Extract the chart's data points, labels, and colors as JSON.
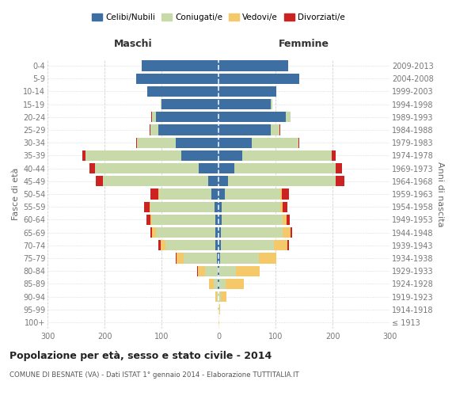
{
  "age_groups": [
    "100+",
    "95-99",
    "90-94",
    "85-89",
    "80-84",
    "75-79",
    "70-74",
    "65-69",
    "60-64",
    "55-59",
    "50-54",
    "45-49",
    "40-44",
    "35-39",
    "30-34",
    "25-29",
    "20-24",
    "15-19",
    "10-14",
    "5-9",
    "0-4"
  ],
  "birth_years": [
    "≤ 1913",
    "1914-1918",
    "1919-1923",
    "1924-1928",
    "1929-1933",
    "1934-1938",
    "1939-1943",
    "1944-1948",
    "1949-1953",
    "1954-1958",
    "1959-1963",
    "1964-1968",
    "1969-1973",
    "1974-1978",
    "1979-1983",
    "1984-1988",
    "1989-1993",
    "1994-1998",
    "1999-2003",
    "2004-2008",
    "2009-2013"
  ],
  "colors": {
    "celibe": "#3e6fa3",
    "coniugato": "#c8d9aa",
    "vedovo": "#f5c96a",
    "divorziato": "#cc2222"
  },
  "maschi": {
    "celibe": [
      0,
      0,
      0,
      1,
      2,
      3,
      5,
      5,
      5,
      7,
      12,
      18,
      35,
      65,
      75,
      105,
      110,
      100,
      125,
      145,
      135
    ],
    "coniugato": [
      0,
      1,
      3,
      7,
      22,
      58,
      88,
      105,
      112,
      112,
      92,
      185,
      182,
      168,
      68,
      14,
      7,
      2,
      0,
      0,
      0
    ],
    "vedovo": [
      0,
      0,
      2,
      8,
      12,
      12,
      8,
      6,
      3,
      2,
      2,
      0,
      0,
      0,
      0,
      0,
      0,
      0,
      0,
      0,
      0
    ],
    "divorziato": [
      0,
      0,
      0,
      0,
      1,
      2,
      4,
      4,
      6,
      9,
      14,
      12,
      9,
      6,
      2,
      2,
      1,
      0,
      0,
      0,
      0
    ]
  },
  "femmine": {
    "nubile": [
      0,
      0,
      0,
      1,
      2,
      3,
      4,
      4,
      5,
      6,
      11,
      17,
      28,
      42,
      58,
      92,
      118,
      92,
      102,
      142,
      122
    ],
    "coniugata": [
      0,
      1,
      4,
      12,
      28,
      68,
      93,
      108,
      108,
      102,
      97,
      188,
      177,
      157,
      82,
      15,
      8,
      2,
      0,
      0,
      0
    ],
    "vedova": [
      1,
      2,
      10,
      32,
      42,
      30,
      24,
      14,
      7,
      5,
      3,
      0,
      0,
      0,
      0,
      0,
      0,
      0,
      0,
      0,
      0
    ],
    "divorziata": [
      0,
      0,
      0,
      0,
      0,
      1,
      2,
      3,
      5,
      8,
      13,
      16,
      11,
      6,
      2,
      1,
      1,
      0,
      0,
      0,
      0
    ]
  },
  "xlim": 300,
  "title": "Popolazione per età, sesso e stato civile - 2014",
  "subtitle": "COMUNE DI BESNATE (VA) - Dati ISTAT 1° gennaio 2014 - Elaborazione TUTTITALIA.IT",
  "ylabel_left": "Fasce di età",
  "ylabel_right": "Anni di nascita",
  "xlabel_left": "Maschi",
  "xlabel_right": "Femmine",
  "legend_labels": [
    "Celibi/Nubili",
    "Coniugati/e",
    "Vedovi/e",
    "Divorziati/e"
  ],
  "background_color": "#ffffff",
  "grid_color": "#cccccc"
}
